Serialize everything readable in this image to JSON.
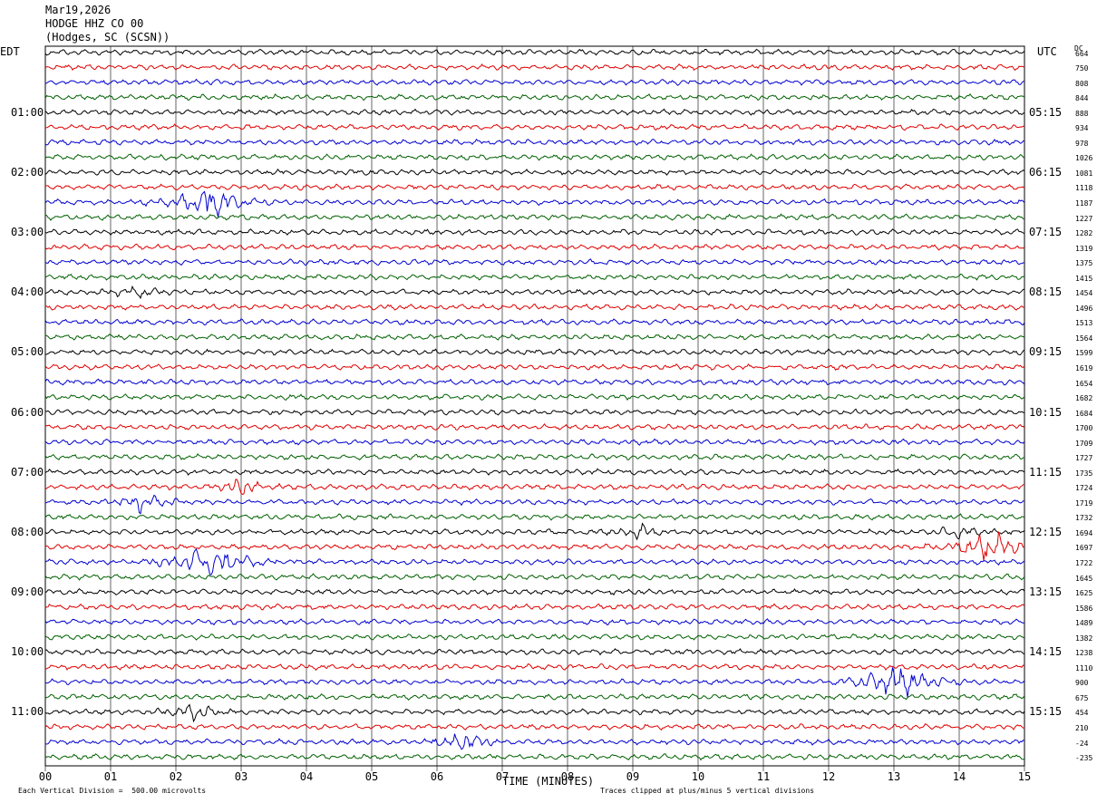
{
  "header": {
    "date": "Mar19,2026",
    "station": "HODGE HHZ CO 00",
    "location": "(Hodges, SC (SCSN))"
  },
  "left_tz": "EDT",
  "right_tz": "UTC",
  "dc_header": "DC",
  "left_labels": [
    "01:00",
    "02:00",
    "03:00",
    "04:00",
    "05:00",
    "06:00",
    "07:00",
    "08:00",
    "09:00",
    "10:00",
    "11:00"
  ],
  "right_labels": [
    "05:15",
    "06:15",
    "07:15",
    "08:15",
    "09:15",
    "10:15",
    "11:15",
    "12:15",
    "13:15",
    "14:15",
    "15:15"
  ],
  "dc_values": [
    "664",
    "750",
    "808",
    "844",
    "888",
    "934",
    "978",
    "1026",
    "1081",
    "1118",
    "1187",
    "1227",
    "1282",
    "1319",
    "1375",
    "1415",
    "1454",
    "1496",
    "1513",
    "1564",
    "1599",
    "1619",
    "1654",
    "1682",
    "1684",
    "1700",
    "1709",
    "1727",
    "1735",
    "1724",
    "1719",
    "1732",
    "1694",
    "1697",
    "1722",
    "1645",
    "1625",
    "1586",
    "1489",
    "1382",
    "1238",
    "1110",
    "900",
    "675",
    "454",
    "210",
    "-24",
    "-235"
  ],
  "trace_colors": [
    "#000000",
    "#e00000",
    "#0000d0",
    "#006000"
  ],
  "footer": {
    "left": "Each Vertical Division =  500.00 microvolts",
    "center": "TIME (MINUTES)",
    "right": "Traces clipped at plus/minus 5 vertical divisions"
  },
  "chart_data": {
    "type": "line",
    "title": "HODGE HHZ CO 00",
    "subtitle": "(Hodges, SC (SCSN))",
    "xlabel": "TIME (MINUTES)",
    "x_ticks": [
      "00",
      "01",
      "02",
      "03",
      "04",
      "05",
      "06",
      "07",
      "08",
      "09",
      "10",
      "11",
      "12",
      "13",
      "14",
      "15"
    ],
    "xlim": [
      0,
      15
    ],
    "rows": 48,
    "row_interval_minutes": 15,
    "start_edt": "00:00",
    "start_utc": "04:15",
    "grid": true,
    "events": [
      {
        "row": 10,
        "minute": 2.5,
        "amplitude": "large"
      },
      {
        "row": 16,
        "minute": 1.4,
        "amplitude": "small"
      },
      {
        "row": 29,
        "minute": 3.0,
        "amplitude": "moderate"
      },
      {
        "row": 30,
        "minute": 1.5,
        "amplitude": "moderate"
      },
      {
        "row": 32,
        "minute": 9.1,
        "amplitude": "small"
      },
      {
        "row": 32,
        "minute": 14.0,
        "amplitude": "small"
      },
      {
        "row": 33,
        "minute": 14.5,
        "amplitude": "large"
      },
      {
        "row": 34,
        "minute": 2.5,
        "amplitude": "large"
      },
      {
        "row": 42,
        "minute": 13.05,
        "amplitude": "large"
      },
      {
        "row": 44,
        "minute": 2.3,
        "amplitude": "moderate"
      },
      {
        "row": 46,
        "minute": 6.4,
        "amplitude": "moderate"
      }
    ]
  }
}
